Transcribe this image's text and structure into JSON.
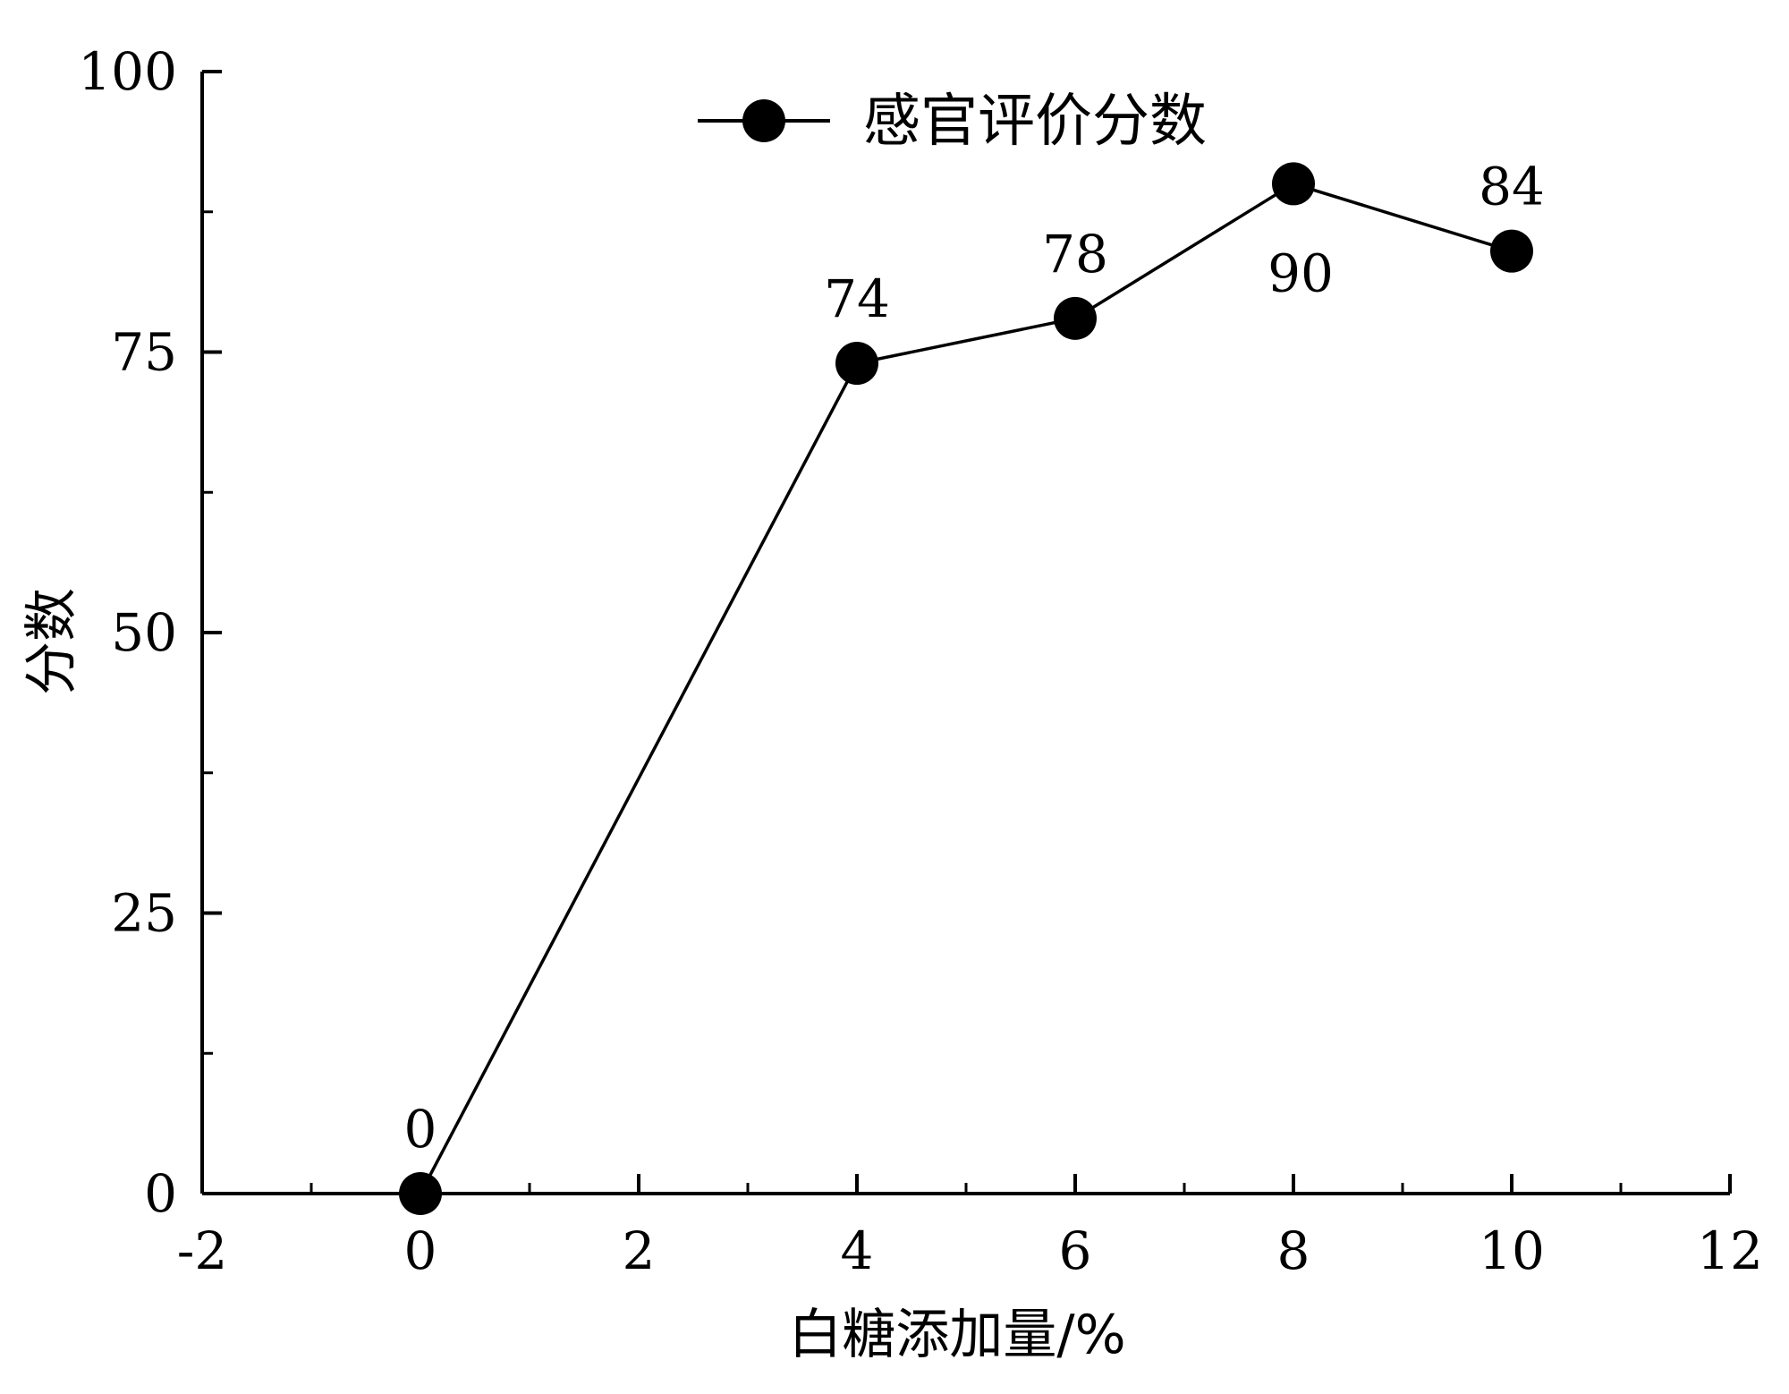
{
  "chart_data": {
    "type": "line",
    "title": "",
    "xlabel": "白糖添加量/%",
    "ylabel": "分数",
    "xlim": [
      -2,
      12
    ],
    "ylim": [
      0,
      100
    ],
    "x_ticks": [
      -2,
      0,
      2,
      4,
      6,
      8,
      10,
      12
    ],
    "y_ticks": [
      0,
      25,
      50,
      75,
      100
    ],
    "grid": false,
    "legend_position": "top-center",
    "series": [
      {
        "name": "感官评价分数",
        "color": "#000000",
        "marker": "filled-circle",
        "x": [
          0,
          4,
          6,
          8,
          10
        ],
        "y": [
          0,
          74,
          78,
          90,
          84
        ],
        "labels": [
          "0",
          "74",
          "78",
          "90",
          "84"
        ]
      }
    ]
  }
}
